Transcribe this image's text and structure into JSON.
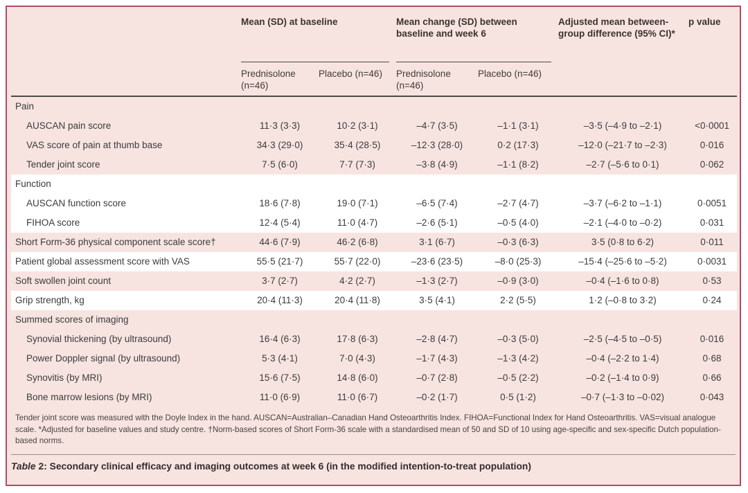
{
  "colors": {
    "table_background": "#f7e4e1",
    "stripe_white": "#ffffff",
    "border": "#b04a64",
    "rule_dark": "#4a4a4a",
    "text": "#3b3b3b"
  },
  "table": {
    "header": {
      "group_baseline": "Mean (SD) at baseline",
      "group_change": "Mean change (SD) between baseline and week 6",
      "group_diff": "Adjusted mean between-group difference (95% CI)*",
      "group_pvalue": "p value",
      "sub_columns": [
        "Prednisolone (n=46)",
        "Placebo (n=46)",
        "Prednisolone (n=46)",
        "Placebo (n=46)"
      ]
    },
    "rows": [
      {
        "type": "section",
        "label": "Pain"
      },
      {
        "type": "data",
        "label": "AUSCAN pain score",
        "cells": [
          "11·3 (3·3)",
          "10·2 (3·1)",
          "–4·7 (3·5)",
          "–1·1 (3·1)",
          "–3·5 (–4·9 to –2·1)",
          "<0·0001"
        ]
      },
      {
        "type": "data",
        "label": "VAS score of pain at thumb base",
        "cells": [
          "34·3 (29·0)",
          "35·4 (28·5)",
          "–12·3 (28·0)",
          "0·2 (17·3)",
          "–12·0 (–21·7 to –2·3)",
          "0·016"
        ]
      },
      {
        "type": "data",
        "label": "Tender joint score",
        "cells": [
          "7·5 (6·0)",
          "7·7 (7·3)",
          "–3·8 (4·9)",
          "–1·1 (8·2)",
          "–2·7 (–5·6 to 0·1)",
          "0·062"
        ]
      },
      {
        "type": "section",
        "label": "Function"
      },
      {
        "type": "data",
        "label": "AUSCAN function score",
        "cells": [
          "18·6 (7·8)",
          "19·0 (7·1)",
          "–6·5 (7·4)",
          "–2·7 (4·7)",
          "–3·7 (–6·2 to –1·1)",
          "0·0051"
        ]
      },
      {
        "type": "data",
        "label": "FIHOA score",
        "cells": [
          "12·4 (5·4)",
          "11·0 (4·7)",
          "–2·6 (5·1)",
          "–0·5 (4·0)",
          "–2·1 (–4·0 to –0·2)",
          "0·031"
        ]
      },
      {
        "type": "data",
        "label": "Short Form-36 physical component scale score†",
        "cells": [
          "44·6 (7·9)",
          "46·2 (6·8)",
          "3·1 (6·7)",
          "–0·3 (6·3)",
          "3·5 (0·8 to 6·2)",
          "0·011"
        ]
      },
      {
        "type": "data",
        "label": "Patient global assessment score with VAS",
        "cells": [
          "55·5 (21·7)",
          "55·7 (22·0)",
          "–23·6 (23·5)",
          "–8·0 (25·3)",
          "–15·4 (–25·6 to –5·2)",
          "0·0031"
        ]
      },
      {
        "type": "data",
        "label": "Soft swollen joint count",
        "cells": [
          "3·7 (2·7)",
          "4·2 (2·7)",
          "–1·3 (2·7)",
          "–0·9 (3·0)",
          "–0·4 (–1·6 to 0·8)",
          "0·53"
        ]
      },
      {
        "type": "data",
        "label": "Grip strength, kg",
        "cells": [
          "20·4 (11·3)",
          "20·4 (11·8)",
          "3·5 (4·1)",
          "2·2 (5·5)",
          "1·2 (–0·8 to 3·2)",
          "0·24"
        ]
      },
      {
        "type": "section",
        "label": "Summed scores of imaging"
      },
      {
        "type": "data",
        "label": "Synovial thickening (by ultrasound)",
        "cells": [
          "16·4 (6·3)",
          "17·8 (6·3)",
          "–2·8 (4·7)",
          "–0·3 (5·0)",
          "–2·5 (–4·5 to –0·5)",
          "0·016"
        ]
      },
      {
        "type": "data",
        "label": "Power Doppler signal (by ultrasound)",
        "cells": [
          "5·3 (4·1)",
          "7·0 (4·3)",
          "–1·7 (4·3)",
          "–1·3 (4·2)",
          "–0·4 (–2·2 to 1·4)",
          "0·68"
        ]
      },
      {
        "type": "data",
        "label": "Synovitis (by MRI)",
        "cells": [
          "15·6 (7·5)",
          "14·8 (6·0)",
          "–0·7 (2·8)",
          "–0·5 (2·2)",
          "–0·2 (–1·4 to 0·9)",
          "0·66"
        ]
      },
      {
        "type": "data",
        "label": "Bone marrow lesions (by MRI)",
        "cells": [
          "11·0 (6·9)",
          "11·0 (6·7)",
          "–0·2 (1·7)",
          "0·5 (1·2)",
          "–0·7 (–1·3 to –0·02)",
          "0·043"
        ]
      }
    ],
    "footnote": "Tender joint score was measured with the Doyle Index in the hand. AUSCAN=Australian–Canadian Hand Osteoarthritis Index. FIHOA=Functional Index for Hand Osteoarthritis. VAS=visual analogue scale. *Adjusted for baseline values and study centre. †Norm-based scores of Short Form-36 scale with a standardised mean of 50 and SD of 10 using age-specific and sex-specific Dutch population-based norms.",
    "caption_word": "Table",
    "caption_rest": "2: Secondary clinical efficacy and imaging outcomes at week 6 (in the modified intention-to-treat population)"
  }
}
